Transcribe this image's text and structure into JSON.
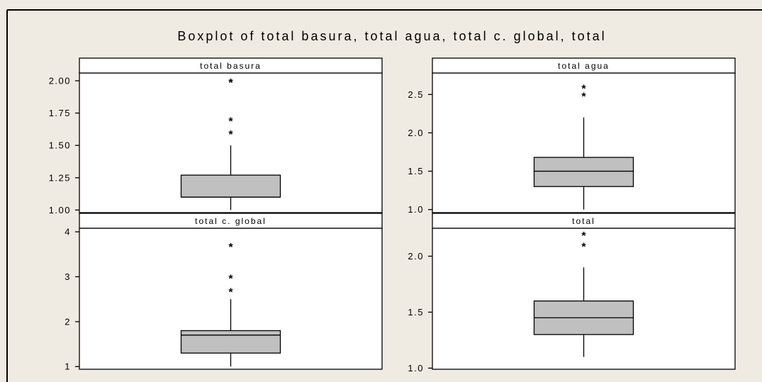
{
  "chart_data": {
    "title": "Boxplot of total basura, total agua, total c. global, total",
    "type": "box",
    "panels": [
      {
        "name": "total basura",
        "ylim": [
          0.98,
          2.06
        ],
        "ticks": [
          1.0,
          1.25,
          1.5,
          1.75,
          2.0
        ],
        "tick_labels": [
          "1.00",
          "1.25",
          "1.50",
          "1.75",
          "2.00"
        ],
        "min": 1.0,
        "q1": 1.1,
        "median": 1.1,
        "q3": 1.27,
        "max": 1.5,
        "outliers": [
          1.6,
          1.7,
          2.0,
          2.0
        ]
      },
      {
        "name": "total agua",
        "ylim": [
          0.96,
          2.78
        ],
        "ticks": [
          1.0,
          1.5,
          2.0,
          2.5
        ],
        "tick_labels": [
          "1.0",
          "1.5",
          "2.0",
          "2.5"
        ],
        "min": 1.0,
        "q1": 1.3,
        "median": 1.5,
        "q3": 1.68,
        "max": 2.2,
        "outliers": [
          2.5,
          2.6
        ]
      },
      {
        "name": "total c. global",
        "ylim": [
          0.94,
          4.08
        ],
        "ticks": [
          1,
          2,
          3,
          4
        ],
        "tick_labels": [
          "1",
          "2",
          "3",
          "4"
        ],
        "min": 1.0,
        "q1": 1.3,
        "median": 1.7,
        "q3": 1.8,
        "max": 2.5,
        "outliers": [
          2.7,
          3.0,
          3.7
        ]
      },
      {
        "name": "total",
        "ylim": [
          0.99,
          2.25
        ],
        "ticks": [
          1.0,
          1.5,
          2.0
        ],
        "tick_labels": [
          "1.0",
          "1.5",
          "2.0"
        ],
        "min": 1.1,
        "q1": 1.3,
        "median": 1.45,
        "q3": 1.6,
        "max": 1.9,
        "outliers": [
          2.1,
          2.2
        ]
      }
    ]
  }
}
